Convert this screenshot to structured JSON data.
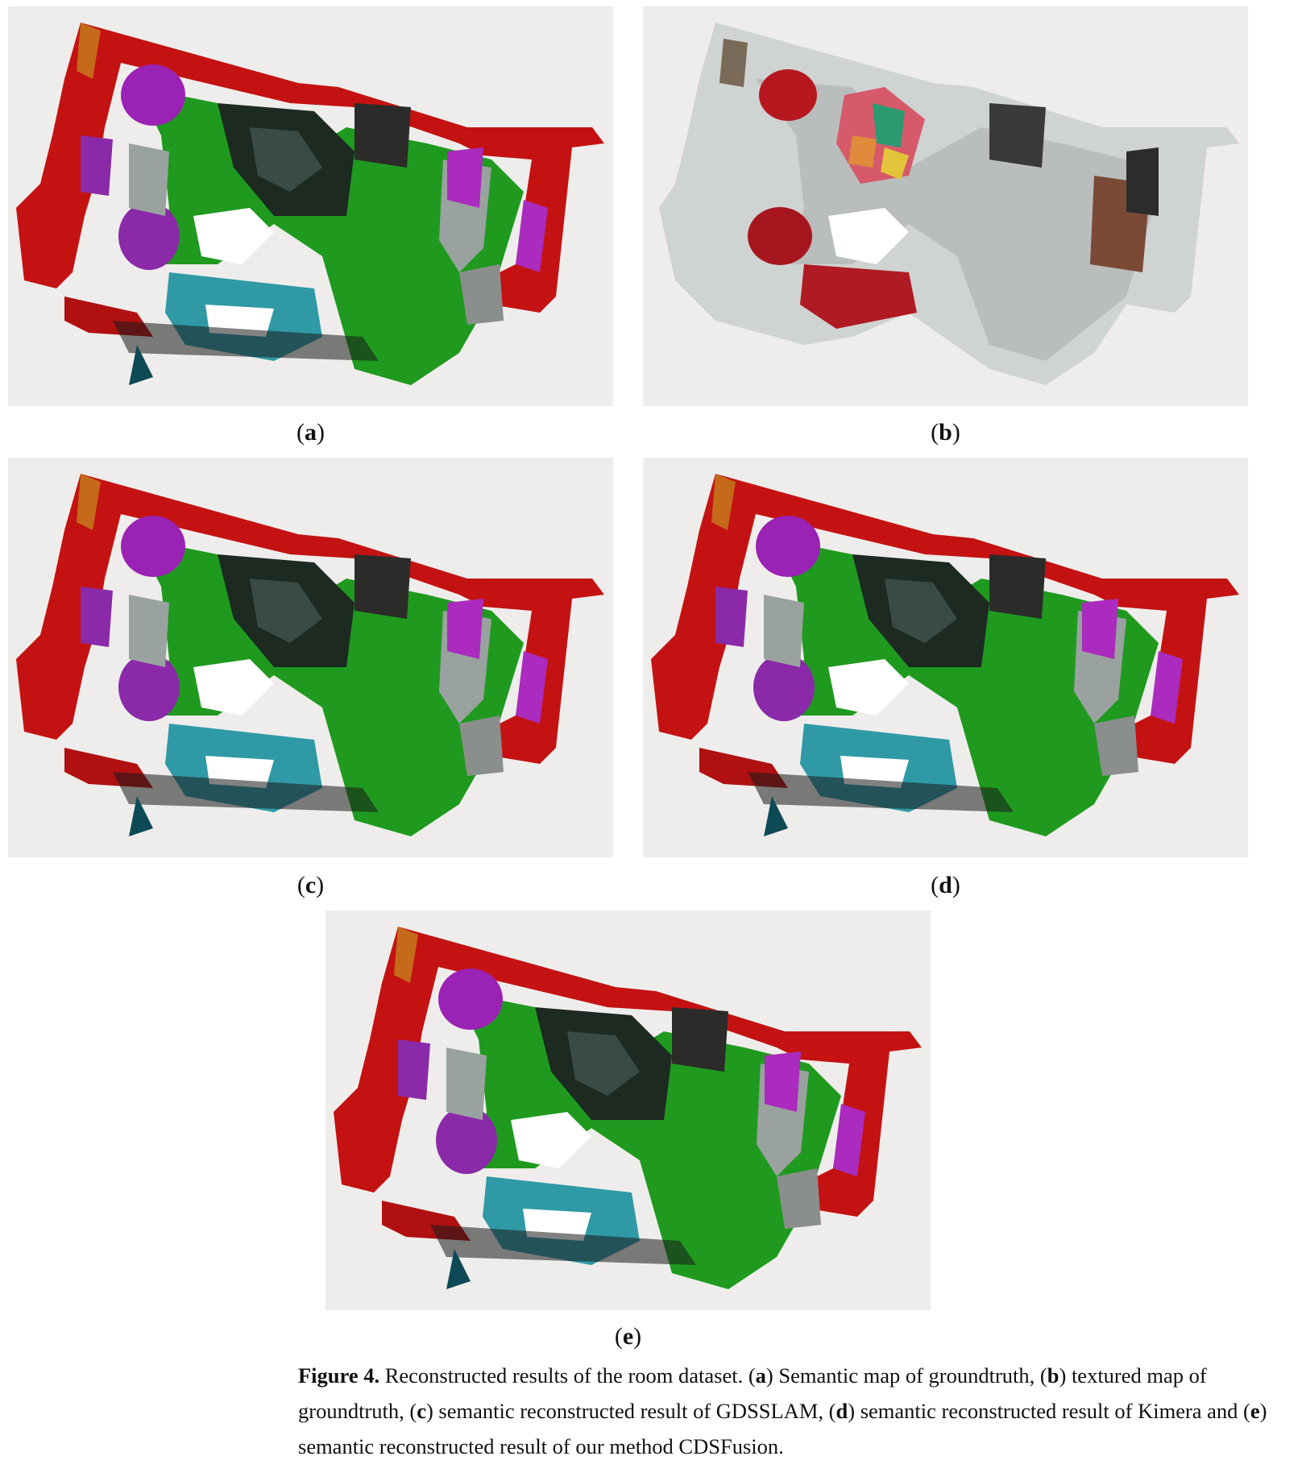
{
  "panels": [
    {
      "id": "a",
      "label": "a",
      "style": "semantic"
    },
    {
      "id": "b",
      "label": "b",
      "style": "textured"
    },
    {
      "id": "c",
      "label": "c",
      "style": "semantic"
    },
    {
      "id": "d",
      "label": "d",
      "style": "semantic"
    },
    {
      "id": "e",
      "label": "e",
      "style": "semantic"
    }
  ],
  "caption": {
    "figure_label": "Figure 4.",
    "text_1": " Reconstructed results of the room dataset. (",
    "a": "a",
    "text_a": ") Semantic map of groundtruth, (",
    "b": "b",
    "text_b": ") textured map of groundtruth, (",
    "c": "c",
    "text_c": ") semantic reconstructed result of GDSSLAM, (",
    "d": "d",
    "text_d": ") semantic reconstructed result of Kimera and (",
    "e": "e",
    "text_e": ") semantic reconstructed result of our method CDSFusion."
  },
  "colors": {
    "panel_bg": "#eeedeb",
    "wall": "#c41212",
    "floor": "#1f9a1f",
    "chair": "#9a22b4",
    "table": "#2f9aa6",
    "dark": "#1c2a22"
  }
}
